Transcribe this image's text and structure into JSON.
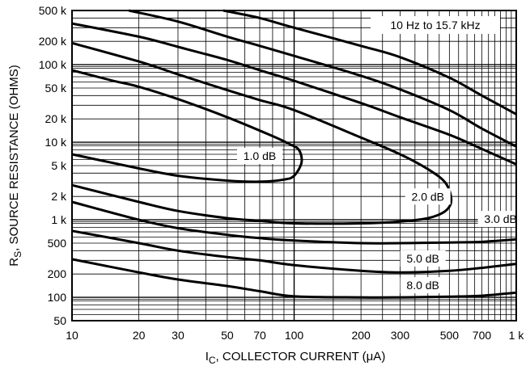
{
  "chart_data": {
    "type": "line",
    "xscale": "log",
    "yscale": "log",
    "xlim": [
      10,
      1000
    ],
    "ylim": [
      50,
      500000
    ],
    "grid": true,
    "xlabel_main": "I",
    "xlabel_sub": "C",
    "xlabel_rest": ", COLLECTOR CURRENT (μA)",
    "ylabel_main": "R",
    "ylabel_sub": "S",
    "ylabel_rest": ", SOURCE RESISTANCE (OHMS)",
    "x_ticks": [
      {
        "v": 10,
        "label": "10"
      },
      {
        "v": 20,
        "label": "20"
      },
      {
        "v": 30,
        "label": "30"
      },
      {
        "v": 50,
        "label": "50"
      },
      {
        "v": 70,
        "label": "70"
      },
      {
        "v": 100,
        "label": "100"
      },
      {
        "v": 200,
        "label": "200"
      },
      {
        "v": 300,
        "label": "300"
      },
      {
        "v": 500,
        "label": "500"
      },
      {
        "v": 700,
        "label": "700"
      },
      {
        "v": 1000,
        "label": "1 k"
      }
    ],
    "y_ticks": [
      {
        "v": 50,
        "label": "50"
      },
      {
        "v": 100,
        "label": "100"
      },
      {
        "v": 200,
        "label": "200"
      },
      {
        "v": 500,
        "label": "500"
      },
      {
        "v": 1000,
        "label": "1 k"
      },
      {
        "v": 2000,
        "label": "2 k"
      },
      {
        "v": 5000,
        "label": "5 k"
      },
      {
        "v": 10000,
        "label": "10 k"
      },
      {
        "v": 20000,
        "label": "20 k"
      },
      {
        "v": 50000,
        "label": "50 k"
      },
      {
        "v": 100000,
        "label": "100 k"
      },
      {
        "v": 200000,
        "label": "200 k"
      },
      {
        "v": 500000,
        "label": "500 k"
      }
    ],
    "annotation": "10 Hz to 15.7 kHz",
    "series": [
      {
        "label": "1.0 dB",
        "label_at": [
          70,
          6500
        ],
        "points": [
          [
            10,
            7000
          ],
          [
            20,
            4600
          ],
          [
            30,
            3700
          ],
          [
            50,
            3200
          ],
          [
            70,
            3100
          ],
          [
            90,
            3300
          ],
          [
            100,
            3700
          ],
          [
            108,
            5500
          ],
          [
            105,
            8000
          ],
          [
            95,
            9500
          ],
          [
            80,
            12000
          ],
          [
            50,
            21000
          ],
          [
            30,
            36000
          ],
          [
            20,
            52000
          ],
          [
            15,
            63000
          ],
          [
            10,
            85000
          ]
        ]
      },
      {
        "label": "2.0 dB",
        "label_at": [
          400,
          1950
        ],
        "points": [
          [
            10,
            2800
          ],
          [
            20,
            1700
          ],
          [
            30,
            1300
          ],
          [
            50,
            1050
          ],
          [
            70,
            970
          ],
          [
            100,
            900
          ],
          [
            200,
            900
          ],
          [
            300,
            950
          ],
          [
            400,
            1050
          ],
          [
            480,
            1300
          ],
          [
            510,
            1800
          ],
          [
            480,
            3000
          ],
          [
            400,
            4500
          ],
          [
            300,
            7000
          ],
          [
            200,
            11500
          ],
          [
            100,
            26000
          ],
          [
            70,
            35000
          ],
          [
            50,
            47000
          ],
          [
            30,
            75000
          ],
          [
            20,
            110000
          ],
          [
            10,
            190000
          ]
        ]
      },
      {
        "label": "3.0 dB",
        "label_at": [
          850,
          1000
        ],
        "points": [
          [
            10,
            1700
          ],
          [
            20,
            1000
          ],
          [
            30,
            780
          ],
          [
            50,
            640
          ],
          [
            70,
            580
          ],
          [
            100,
            540
          ],
          [
            200,
            500
          ],
          [
            300,
            500
          ],
          [
            500,
            510
          ],
          [
            700,
            520
          ],
          [
            1000,
            560
          ]
        ]
      },
      {
        "label": "5.0 dB",
        "label_at": [
          380,
          310
        ],
        "points": [
          [
            10,
            720
          ],
          [
            20,
            500
          ],
          [
            30,
            400
          ],
          [
            50,
            330
          ],
          [
            70,
            300
          ],
          [
            100,
            260
          ],
          [
            200,
            220
          ],
          [
            300,
            210
          ],
          [
            500,
            220
          ],
          [
            700,
            240
          ],
          [
            1000,
            270
          ]
        ]
      },
      {
        "label": "8.0 dB",
        "label_at": [
          380,
          140
        ],
        "points": [
          [
            10,
            310
          ],
          [
            20,
            210
          ],
          [
            30,
            170
          ],
          [
            50,
            140
          ],
          [
            70,
            120
          ],
          [
            100,
            103
          ],
          [
            200,
            100
          ],
          [
            300,
            100
          ],
          [
            500,
            102
          ],
          [
            700,
            105
          ],
          [
            1000,
            115
          ]
        ]
      },
      {
        "label": "",
        "points": [
          [
            10,
            340000
          ],
          [
            20,
            230000
          ],
          [
            30,
            170000
          ],
          [
            50,
            115000
          ],
          [
            70,
            85000
          ],
          [
            100,
            62000
          ],
          [
            200,
            32000
          ],
          [
            300,
            21000
          ],
          [
            500,
            12500
          ],
          [
            700,
            8200
          ],
          [
            1000,
            5200
          ]
        ]
      },
      {
        "label": "",
        "points": [
          [
            18,
            500000
          ],
          [
            30,
            360000
          ],
          [
            50,
            230000
          ],
          [
            70,
            175000
          ],
          [
            100,
            130000
          ],
          [
            200,
            72000
          ],
          [
            300,
            48000
          ],
          [
            500,
            26000
          ],
          [
            700,
            15000
          ],
          [
            1000,
            8800
          ]
        ]
      },
      {
        "label": "",
        "points": [
          [
            48,
            500000
          ],
          [
            70,
            400000
          ],
          [
            100,
            300000
          ],
          [
            200,
            175000
          ],
          [
            300,
            125000
          ],
          [
            500,
            68000
          ],
          [
            700,
            40000
          ],
          [
            1000,
            23000
          ]
        ]
      }
    ]
  }
}
